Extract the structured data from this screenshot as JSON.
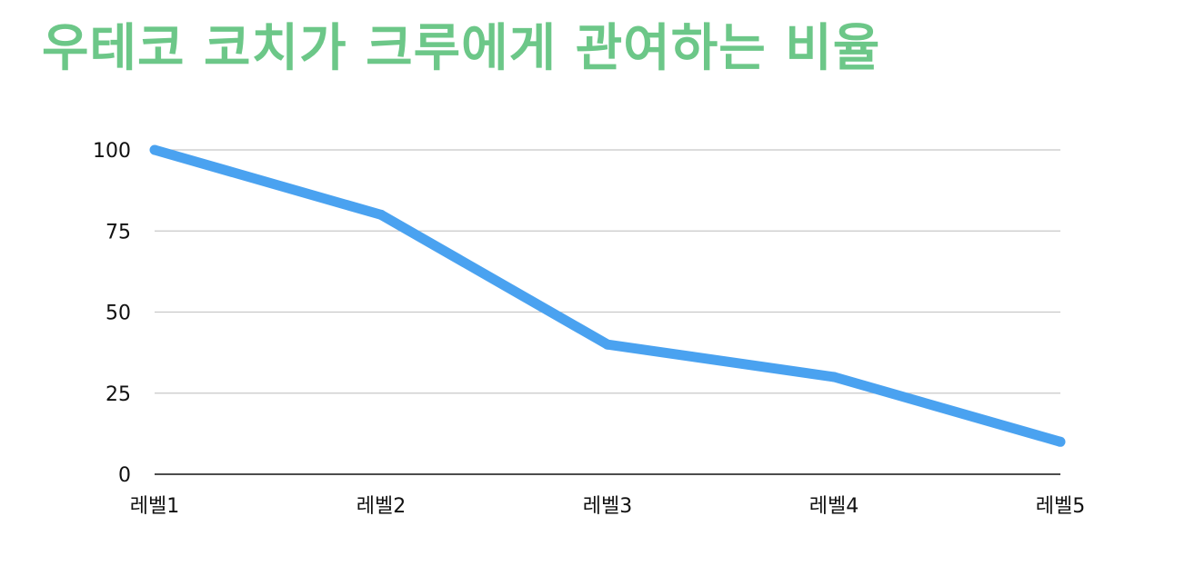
{
  "chart_data": {
    "type": "line",
    "title": "우테코 코치가 크루에게 관여하는 비율",
    "categories": [
      "레벨1",
      "레벨2",
      "레벨3",
      "레벨4",
      "레벨5"
    ],
    "series": [
      {
        "values": [
          100,
          80,
          40,
          30,
          10
        ]
      }
    ],
    "yticks": [
      "0",
      "25",
      "50",
      "75",
      "100"
    ],
    "ylim": [
      0,
      100
    ],
    "xlabel": "",
    "ylabel": "",
    "grid": true,
    "colors": {
      "title": "#6cc788",
      "line": "#4aa2f0",
      "grid": "#c8c8c8",
      "axis": "#111111"
    }
  }
}
